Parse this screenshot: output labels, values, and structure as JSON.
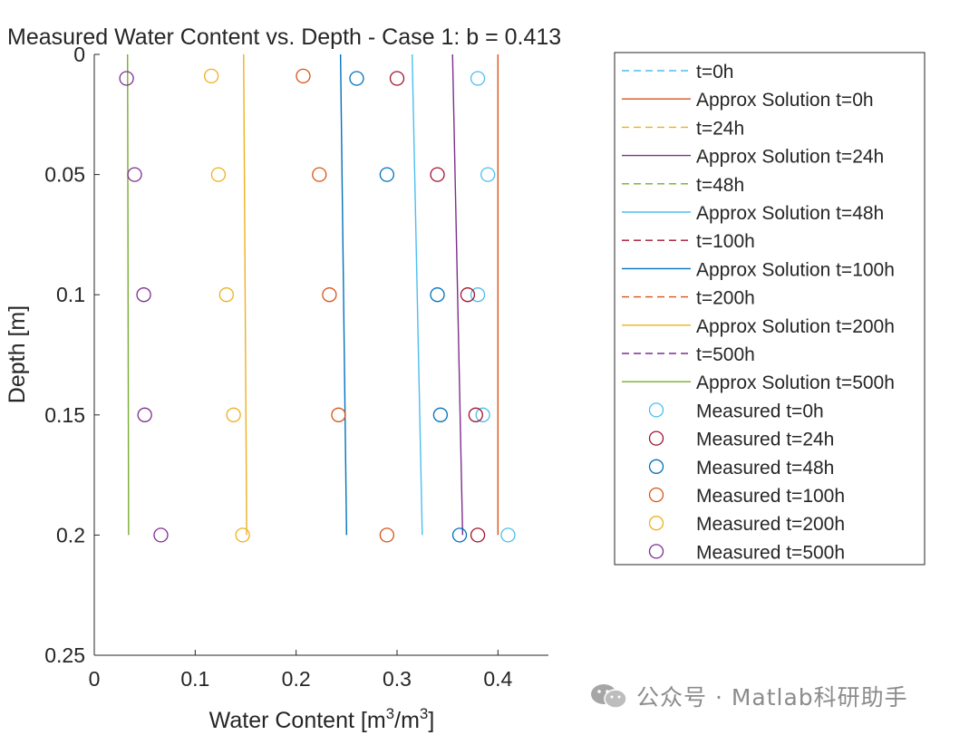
{
  "chart_data": {
    "type": "line",
    "title": "Measured Water Content vs. Depth - Case 1: b = 0.413",
    "xlabel": "Water Content [m",
    "xlabel_sup1": "3",
    "xlabel_mid": "/m",
    "xlabel_sup2": "3",
    "xlabel_end": "]",
    "ylabel": "Depth [m]",
    "xlim": [
      0,
      0.45
    ],
    "ylim": [
      0,
      0.25
    ],
    "y_reversed": true,
    "xticks": [
      "0",
      "0.1",
      "0.2",
      "0.3",
      "0.4"
    ],
    "yticks": [
      "0",
      "0.05",
      "0.1",
      "0.15",
      "0.2",
      "0.25"
    ],
    "legend_position": "outside-right",
    "dashed_series": [
      {
        "name": "t=0h",
        "color": "#4DBEEE",
        "points": []
      },
      {
        "name": "t=24h",
        "color": "#EDB120",
        "points": []
      },
      {
        "name": "t=48h",
        "color": "#77AC30",
        "points": []
      },
      {
        "name": "t=100h",
        "color": "#A2142F",
        "points": []
      },
      {
        "name": "t=200h",
        "color": "#D95319",
        "points": []
      },
      {
        "name": "t=500h",
        "color": "#7E2F8E",
        "points": []
      }
    ],
    "approx_series": [
      {
        "name": "Approx Solution t=0h",
        "color": "#D95319",
        "x": [
          0.4,
          0.4
        ],
        "y": [
          0,
          0.2
        ]
      },
      {
        "name": "Approx Solution t=24h",
        "color": "#7E2F8E",
        "x": [
          0.355,
          0.365
        ],
        "y": [
          0,
          0.2
        ]
      },
      {
        "name": "Approx Solution t=48h",
        "color": "#4DBEEE",
        "x": [
          0.315,
          0.325
        ],
        "y": [
          0,
          0.2
        ]
      },
      {
        "name": "Approx Solution t=100h",
        "color": "#0072BD",
        "x": [
          0.244,
          0.25
        ],
        "y": [
          0,
          0.2
        ]
      },
      {
        "name": "Approx Solution t=200h",
        "color": "#EDB120",
        "x": [
          0.148,
          0.151
        ],
        "y": [
          0,
          0.2
        ]
      },
      {
        "name": "Approx Solution t=500h",
        "color": "#77AC30",
        "x": [
          0.033,
          0.034
        ],
        "y": [
          0,
          0.2
        ]
      }
    ],
    "measured_series": [
      {
        "name": "Measured t=0h",
        "color": "#4DBEEE",
        "x": [
          0.38,
          0.39,
          0.38,
          0.385,
          0.41
        ],
        "y": [
          0.01,
          0.05,
          0.1,
          0.15,
          0.2
        ]
      },
      {
        "name": "Measured t=24h",
        "color": "#A2142F",
        "x": [
          0.3,
          0.34,
          0.37,
          0.378,
          0.38
        ],
        "y": [
          0.01,
          0.05,
          0.1,
          0.15,
          0.2
        ]
      },
      {
        "name": "Measured t=48h",
        "color": "#0072BD",
        "x": [
          0.26,
          0.29,
          0.34,
          0.343,
          0.362
        ],
        "y": [
          0.01,
          0.05,
          0.1,
          0.15,
          0.2
        ]
      },
      {
        "name": "Measured t=100h",
        "color": "#D95319",
        "x": [
          0.207,
          0.223,
          0.233,
          0.242,
          0.29
        ],
        "y": [
          0.009,
          0.05,
          0.1,
          0.15,
          0.2
        ]
      },
      {
        "name": "Measured t=200h",
        "color": "#EDB120",
        "x": [
          0.116,
          0.123,
          0.131,
          0.138,
          0.147
        ],
        "y": [
          0.009,
          0.05,
          0.1,
          0.15,
          0.2
        ]
      },
      {
        "name": "Measured t=500h",
        "color": "#7E2F8E",
        "x": [
          0.032,
          0.04,
          0.049,
          0.05,
          0.066
        ],
        "y": [
          0.01,
          0.05,
          0.1,
          0.15,
          0.2
        ]
      }
    ],
    "legend_order": [
      {
        "kind": "dashed",
        "index": 0
      },
      {
        "kind": "approx",
        "index": 0
      },
      {
        "kind": "dashed",
        "index": 1
      },
      {
        "kind": "approx",
        "index": 1
      },
      {
        "kind": "dashed",
        "index": 2
      },
      {
        "kind": "approx",
        "index": 2
      },
      {
        "kind": "dashed",
        "index": 3
      },
      {
        "kind": "approx",
        "index": 3
      },
      {
        "kind": "dashed",
        "index": 4
      },
      {
        "kind": "approx",
        "index": 4
      },
      {
        "kind": "dashed",
        "index": 5
      },
      {
        "kind": "approx",
        "index": 5
      },
      {
        "kind": "measured",
        "index": 0
      },
      {
        "kind": "measured",
        "index": 1
      },
      {
        "kind": "measured",
        "index": 2
      },
      {
        "kind": "measured",
        "index": 3
      },
      {
        "kind": "measured",
        "index": 4
      },
      {
        "kind": "measured",
        "index": 5
      }
    ]
  },
  "watermark": {
    "text": "公众号 · Matlab科研助手",
    "icon": "wechat-icon"
  }
}
